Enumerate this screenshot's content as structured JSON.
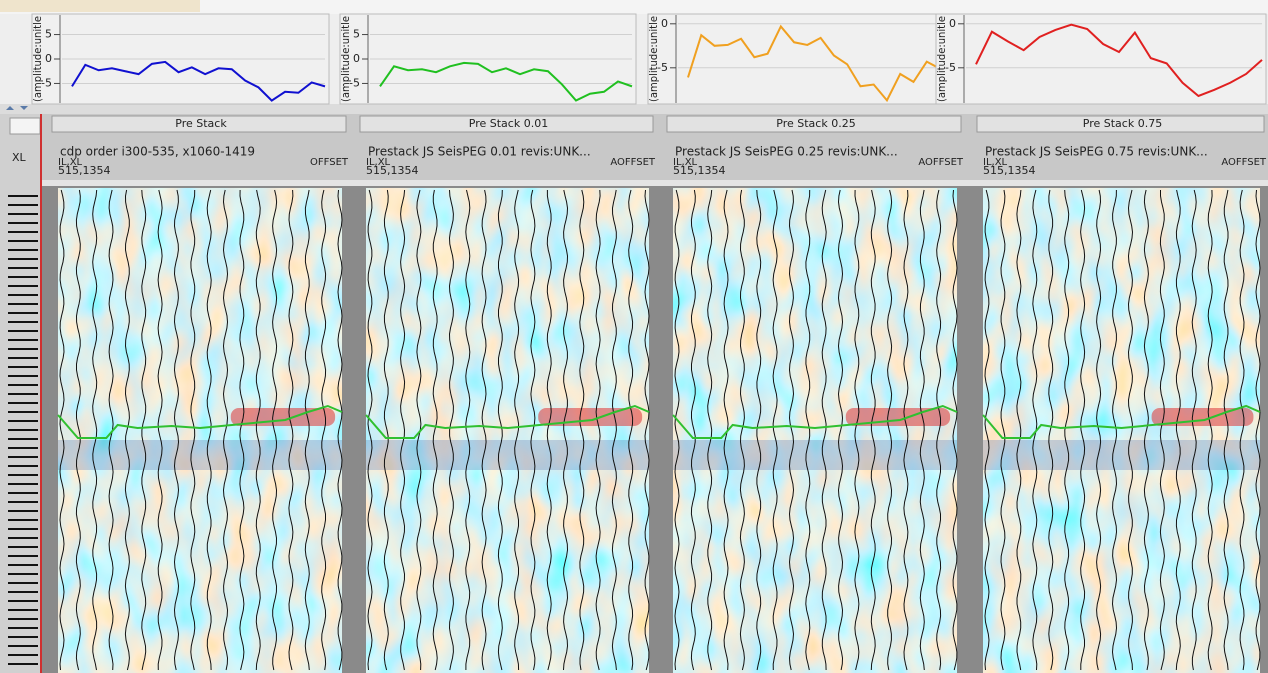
{
  "chart_data": [
    {
      "type": "line",
      "y_label": "(amplitude:unitle",
      "color": "#1010d0",
      "ylim": [
        -9,
        9
      ],
      "yticks": [
        5,
        0,
        -5
      ],
      "values": [
        -5.6,
        -1.2,
        -2.3,
        -1.9,
        -2.5,
        -3.1,
        -1.0,
        -0.6,
        -2.7,
        -1.7,
        -3.1,
        -1.9,
        -2.1,
        -4.4,
        -5.8,
        -8.5,
        -6.7,
        -6.9,
        -4.8,
        -5.6
      ]
    },
    {
      "type": "line",
      "y_label": "(amplitude:unitle",
      "color": "#20c020",
      "ylim": [
        -9,
        9
      ],
      "yticks": [
        5,
        0,
        -5
      ],
      "values": [
        -5.6,
        -1.5,
        -2.3,
        -2.1,
        -2.7,
        -1.5,
        -0.8,
        -1.0,
        -2.7,
        -1.9,
        -3.1,
        -2.1,
        -2.5,
        -5.2,
        -8.5,
        -7.1,
        -6.7,
        -4.6,
        -5.6
      ]
    },
    {
      "type": "line",
      "y_label": "(amplitude:unitle",
      "color": "#f0a020",
      "ylim": [
        -9,
        1
      ],
      "yticks": [
        0,
        -5
      ],
      "values": [
        -6.1,
        -1.3,
        -2.5,
        -2.4,
        -1.7,
        -3.8,
        -3.4,
        -0.3,
        -2.1,
        -2.4,
        -1.6,
        -3.6,
        -4.6,
        -7.1,
        -6.9,
        -8.7,
        -5.7,
        -6.6,
        -4.3,
        -5.1
      ]
    },
    {
      "type": "line",
      "y_label": "(amplitude:unitle",
      "color": "#e02020",
      "ylim": [
        -9,
        1
      ],
      "yticks": [
        0,
        -5
      ],
      "values": [
        -4.6,
        -0.9,
        -2.0,
        -3.0,
        -1.5,
        -0.7,
        -0.1,
        -0.6,
        -2.3,
        -3.2,
        -1.0,
        -3.9,
        -4.5,
        -6.7,
        -8.2,
        -7.5,
        -6.7,
        -5.7,
        -4.1
      ]
    }
  ],
  "sidebar": {
    "label": "XL"
  },
  "panels": [
    {
      "title": "Pre Stack",
      "description": "cdp order i300-535, x1060-1419",
      "key_label": "IL,XL",
      "offset_label": "OFFSET",
      "position": "515,1354"
    },
    {
      "title": "Pre Stack 0.01",
      "description": "Prestack JS SeisPEG 0.01 revis:UNK...",
      "key_label": "IL,XL",
      "offset_label": "AOFFSET",
      "position": "515,1354"
    },
    {
      "title": "Pre Stack 0.25",
      "description": "Prestack JS SeisPEG 0.25 revis:UNK...",
      "key_label": "IL,XL",
      "offset_label": "AOFFSET",
      "position": "515,1354"
    },
    {
      "title": "Pre Stack 0.75",
      "description": "Prestack JS SeisPEG 0.75 revis:UNK...",
      "key_label": "IL,XL",
      "offset_label": "AOFFSET",
      "position": "515,1354"
    }
  ]
}
